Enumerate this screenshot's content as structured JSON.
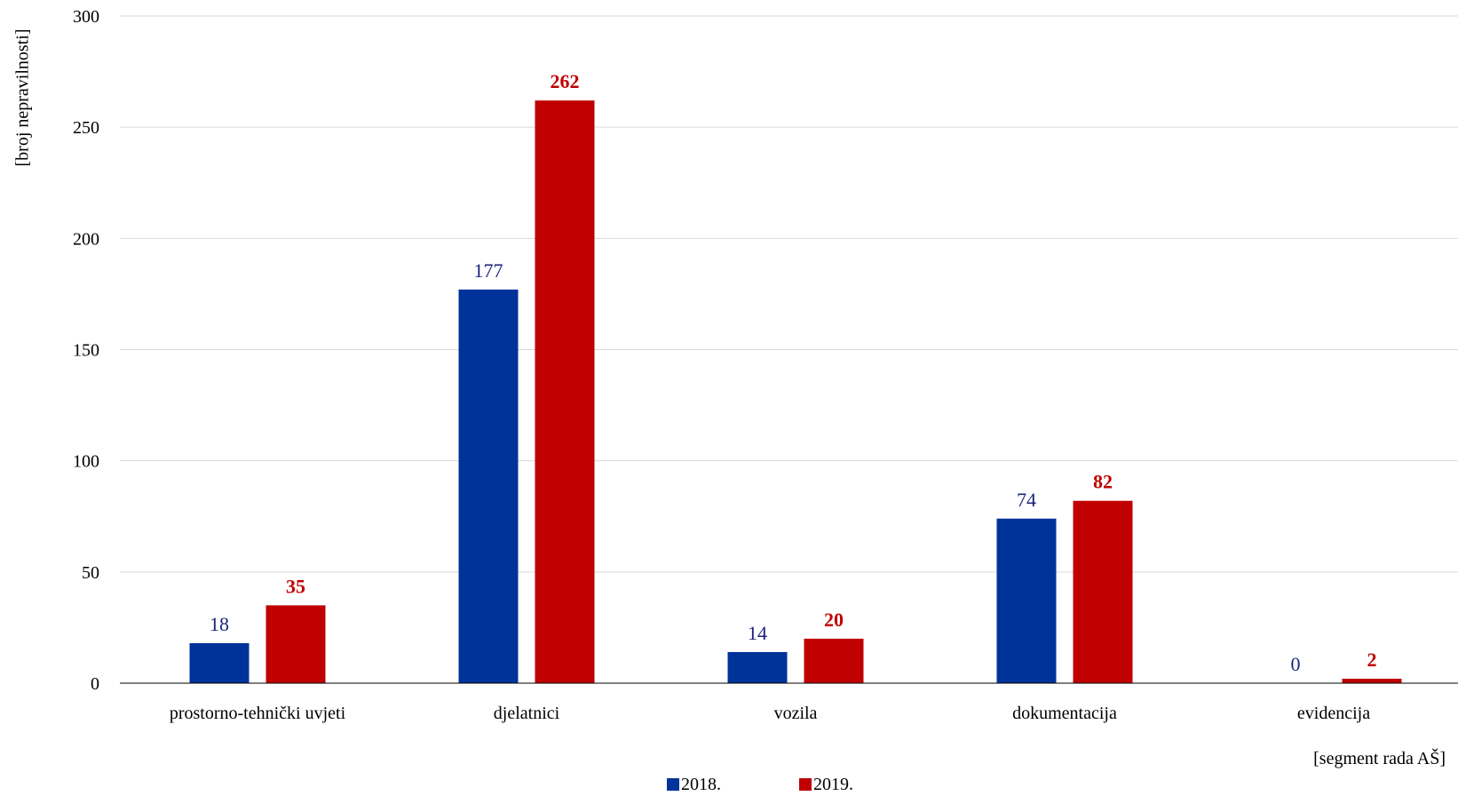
{
  "colors": {
    "series_2018": "#003399",
    "series_2019": "#c00000",
    "label_2018": "#1a237e",
    "label_2019": "#c00000",
    "grid": "#d9d9d9",
    "axis": "#000000"
  },
  "chart_data": {
    "type": "bar",
    "title": "",
    "xlabel": "[segment rada AŠ]",
    "ylabel": "[broj nepravilnosti]",
    "ylim": [
      0,
      300
    ],
    "yticks": [
      "0",
      "50",
      "100",
      "150",
      "200",
      "250",
      "300"
    ],
    "grid": true,
    "legend_position": "bottom",
    "categories": [
      "prostorno-tehnički uvjeti",
      "djelatnici",
      "vozila",
      "dokumentacija",
      "evidencija"
    ],
    "series": [
      {
        "name": "2018.",
        "values": [
          18,
          177,
          14,
          74,
          0
        ]
      },
      {
        "name": "2019.",
        "values": [
          35,
          262,
          20,
          82,
          2
        ]
      }
    ]
  }
}
